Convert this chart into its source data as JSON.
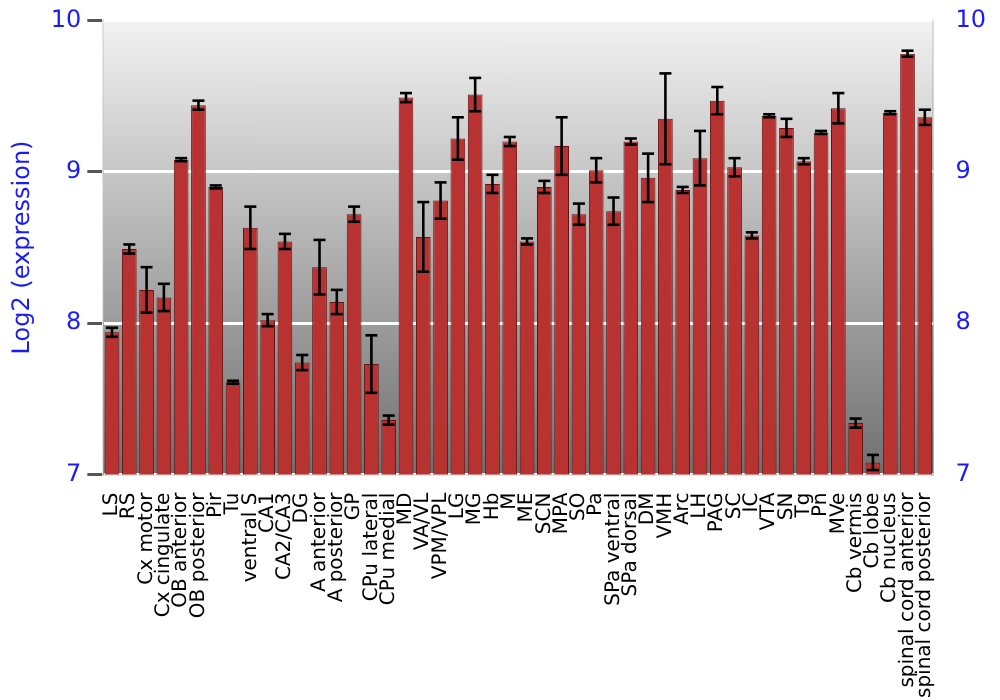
{
  "chart_data": {
    "type": "bar",
    "ylabel": "Log2 (expression)",
    "categories": [
      "LS",
      "RS",
      "Cx motor",
      "Cx cingulate",
      "OB anterior",
      "OB posterior",
      "Pir",
      "Tu",
      "ventral S",
      "CA1",
      "CA2/CA3",
      "DG",
      "A anterior",
      "A posterior",
      "GP",
      "CPu lateral",
      "CPu medial",
      "MD",
      "VA/VL",
      "VPM/VPL",
      "LG",
      "MG",
      "Hb",
      "M",
      "ME",
      "SCN",
      "MPA",
      "SO",
      "Pa",
      "SPa ventral",
      "SPa dorsal",
      "DM",
      "VMH",
      "Arc",
      "LH",
      "PAG",
      "SC",
      "IC",
      "VTA",
      "SN",
      "Tg",
      "Pn",
      "MVe",
      "Cb vermis",
      "Cb lobe",
      "Cb nucleus",
      "spinal cord anterior",
      "spinal cord posterior"
    ],
    "values": [
      7.94,
      8.49,
      8.22,
      8.17,
      9.08,
      9.44,
      8.9,
      7.61,
      8.63,
      8.02,
      8.54,
      7.74,
      8.37,
      8.14,
      8.72,
      7.73,
      7.36,
      9.49,
      8.57,
      8.81,
      9.22,
      9.51,
      8.92,
      9.2,
      8.54,
      8.9,
      9.17,
      8.72,
      9.01,
      8.74,
      9.2,
      8.96,
      9.35,
      8.88,
      9.09,
      9.47,
      9.03,
      8.58,
      9.37,
      9.29,
      9.07,
      9.26,
      9.42,
      7.34,
      7.08,
      9.39,
      9.78,
      9.36
    ],
    "errors": [
      0.03,
      0.03,
      0.15,
      0.09,
      0.01,
      0.03,
      0.01,
      0.01,
      0.14,
      0.04,
      0.05,
      0.05,
      0.18,
      0.08,
      0.05,
      0.19,
      0.03,
      0.03,
      0.23,
      0.12,
      0.14,
      0.11,
      0.06,
      0.03,
      0.02,
      0.04,
      0.19,
      0.07,
      0.08,
      0.09,
      0.02,
      0.16,
      0.3,
      0.02,
      0.18,
      0.09,
      0.06,
      0.02,
      0.01,
      0.06,
      0.02,
      0.01,
      0.1,
      0.03,
      0.05,
      0.01,
      0.02,
      0.05
    ],
    "color": "#b83232",
    "ylim": [
      7,
      10
    ],
    "yticks": [
      7,
      8,
      9,
      10
    ],
    "y2lim": [
      7,
      10
    ],
    "y2ticks": [
      7,
      8,
      9,
      10
    ],
    "grid": "y",
    "legend": false
  }
}
